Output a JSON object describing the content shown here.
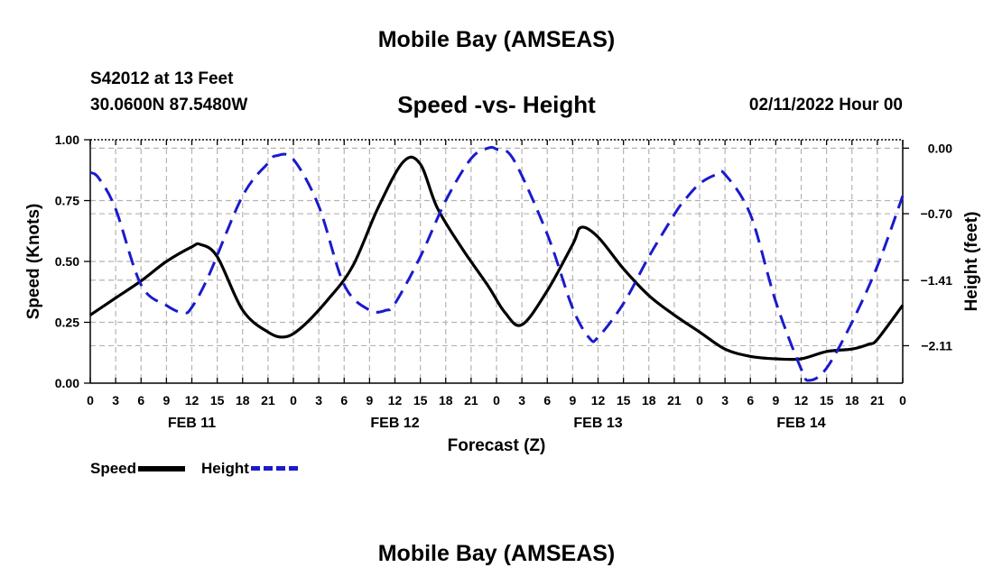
{
  "header": {
    "title": "Mobile Bay (AMSEAS)",
    "station": "S42012 at 13 Feet",
    "coordinates": "30.0600N  87.5480W",
    "subtitle": "Speed -vs- Height",
    "timestamp": "02/11/2022 Hour 00",
    "footer_title": "Mobile Bay (AMSEAS)"
  },
  "legend": {
    "speed_label": "Speed",
    "height_label": "Height"
  },
  "chart_data": {
    "type": "line",
    "title": "Speed -vs- Height",
    "xlabel": "Forecast (Z)",
    "ylabel": "Speed (Knots)",
    "y2label": "Height (feet)",
    "x_range_hours": [
      0,
      96
    ],
    "ylim": [
      0,
      1
    ],
    "y2lim": [
      -2.51,
      0.09
    ],
    "grid": true,
    "x_tick_labels": [
      "0",
      "3",
      "6",
      "9",
      "12",
      "15",
      "18",
      "21",
      "0",
      "3",
      "6",
      "9",
      "12",
      "15",
      "18",
      "21",
      "0",
      "3",
      "6",
      "9",
      "12",
      "15",
      "18",
      "21",
      "0",
      "3",
      "6",
      "9",
      "12",
      "15",
      "18",
      "21",
      "0"
    ],
    "date_labels": [
      {
        "label": "FEB 11",
        "hour": 12
      },
      {
        "label": "FEB 12",
        "hour": 36
      },
      {
        "label": "FEB 13",
        "hour": 60
      },
      {
        "label": "FEB 14",
        "hour": 84
      }
    ],
    "y_ticks": [
      "0.00",
      "0.25",
      "0.50",
      "0.75",
      "1.00"
    ],
    "y2_ticks": [
      0.0,
      -0.7,
      -1.41,
      -2.11
    ],
    "y2_tick_labels": [
      "0.00",
      "−0.70",
      "−1.41",
      "−2.11"
    ],
    "colors": {
      "speed": "#000000",
      "height": "#1a1acc",
      "grid": "#b4b4b4"
    },
    "series": [
      {
        "name": "Speed",
        "axis": "left",
        "style": "solid",
        "x": [
          0,
          3,
          6,
          9,
          12,
          13,
          15,
          18,
          21,
          23,
          25,
          28,
          31,
          34,
          37,
          39,
          41,
          44,
          47,
          49,
          51,
          54,
          57,
          58,
          60,
          63,
          66,
          69,
          72,
          75,
          78,
          81,
          84,
          87,
          90,
          92,
          93,
          96
        ],
        "y": [
          0.28,
          0.35,
          0.42,
          0.5,
          0.56,
          0.57,
          0.52,
          0.3,
          0.21,
          0.19,
          0.23,
          0.34,
          0.48,
          0.72,
          0.91,
          0.9,
          0.72,
          0.55,
          0.4,
          0.29,
          0.24,
          0.38,
          0.57,
          0.64,
          0.6,
          0.47,
          0.36,
          0.28,
          0.21,
          0.14,
          0.11,
          0.1,
          0.1,
          0.13,
          0.14,
          0.16,
          0.18,
          0.32
        ]
      },
      {
        "name": "Height",
        "axis": "right",
        "style": "dashed",
        "x": [
          0,
          1,
          3,
          6,
          9,
          11,
          12,
          14,
          18,
          21,
          22,
          24,
          27,
          30,
          33,
          35,
          36,
          39,
          42,
          45,
          47,
          48,
          50,
          54,
          57,
          59,
          60,
          63,
          66,
          69,
          70,
          72,
          74,
          75,
          78,
          81,
          84,
          85,
          87,
          90,
          93,
          96
        ],
        "y": [
          -0.26,
          -0.32,
          -0.65,
          -1.46,
          -1.68,
          -1.76,
          -1.7,
          -1.36,
          -0.51,
          -0.16,
          -0.08,
          -0.12,
          -0.62,
          -1.46,
          -1.73,
          -1.73,
          -1.66,
          -1.16,
          -0.56,
          -0.11,
          0.0,
          -0.01,
          -0.12,
          -0.92,
          -1.71,
          -2.03,
          -2.02,
          -1.66,
          -1.16,
          -0.71,
          -0.58,
          -0.38,
          -0.28,
          -0.28,
          -0.71,
          -1.64,
          -2.36,
          -2.48,
          -2.35,
          -1.86,
          -1.26,
          -0.51
        ]
      }
    ]
  }
}
